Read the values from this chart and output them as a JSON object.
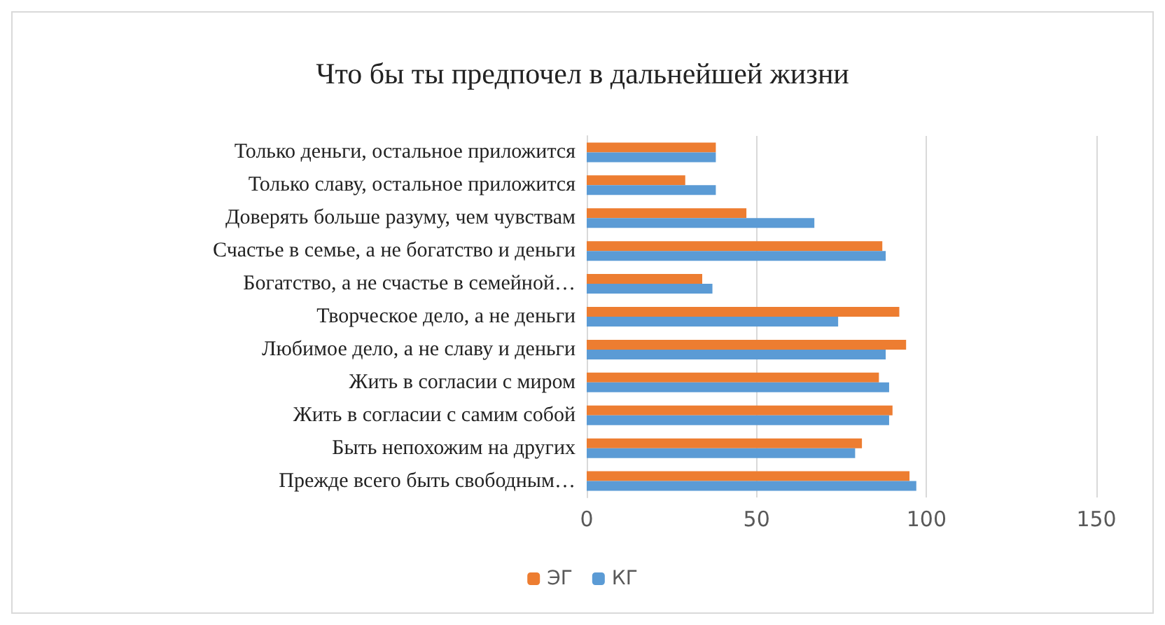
{
  "chart_data": {
    "type": "bar",
    "orientation": "horizontal",
    "title": "Что бы ты предпочел в дальнейшей жизни",
    "categories": [
      "Только деньги, остальное приложится",
      "Только славу, остальное приложится",
      "Доверять больше разуму, чем чувствам",
      "Счастье в семье, а не богатство и деньги",
      "Богатство, а не счастье в семейной…",
      "Творческое дело, а не деньги",
      "Любимое дело, а не славу и деньги",
      "Жить в согласии с миром",
      "Жить в согласии с самим собой",
      "Быть непохожим на других",
      "Прежде всего быть свободным…"
    ],
    "series": [
      {
        "name": "ЭГ",
        "color": "#ed7d31",
        "values": [
          38,
          29,
          47,
          87,
          34,
          92,
          94,
          86,
          90,
          81,
          95
        ]
      },
      {
        "name": "КГ",
        "color": "#5b9bd5",
        "values": [
          38,
          38,
          67,
          88,
          37,
          74,
          88,
          89,
          89,
          79,
          97
        ]
      }
    ],
    "xlim": [
      0,
      150
    ],
    "xticks": [
      0,
      50,
      100,
      150
    ],
    "grid": "x",
    "legend": "bottom"
  }
}
